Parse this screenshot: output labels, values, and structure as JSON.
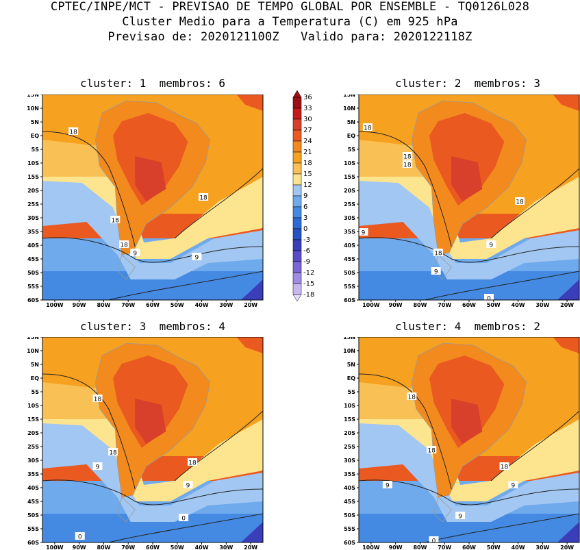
{
  "header": {
    "line1": "CPTEC/INPE/MCT - PREVISAO DE TEMPO GLOBAL POR ENSEMBLE - TQ0126L028",
    "line2": "Cluster Medio para a Temperatura (C) em 925 hPa",
    "line3": "Previsao de: 2020121100Z   Valido para: 2020122118Z"
  },
  "panels": [
    {
      "title": "cluster: 1  membros: 6",
      "contour_labels": [
        "18",
        "18",
        "18",
        "18",
        "9",
        "9"
      ]
    },
    {
      "title": "cluster: 2  membros: 3",
      "contour_labels": [
        "18",
        "18",
        "18",
        "18",
        "18",
        "9",
        "9",
        "9",
        "0"
      ]
    },
    {
      "title": "cluster: 3  membros: 4",
      "contour_labels": [
        "18",
        "18",
        "18",
        "9",
        "9",
        "0",
        "0"
      ]
    },
    {
      "title": "cluster: 4  membros: 2",
      "contour_labels": [
        "18",
        "18",
        "18",
        "9",
        "9",
        "9",
        "0"
      ]
    }
  ],
  "axes": {
    "lat_ticks": [
      "15N",
      "10N",
      "5N",
      "EQ",
      "5S",
      "10S",
      "15S",
      "20S",
      "25S",
      "30S",
      "35S",
      "40S",
      "45S",
      "50S",
      "55S",
      "60S"
    ],
    "lon_ticks": [
      "100W",
      "90W",
      "80W",
      "70W",
      "60W",
      "50W",
      "40W",
      "30W",
      "20W"
    ]
  },
  "colorbar": {
    "labels": [
      "36",
      "33",
      "30",
      "27",
      "24",
      "21",
      "18",
      "15",
      "12",
      "9",
      "6",
      "3",
      "0",
      "-3",
      "-6",
      "-9",
      "-12",
      "-15",
      "-18"
    ],
    "colors": [
      "#9e0f14",
      "#c41a1a",
      "#d8402c",
      "#ea5a20",
      "#f28a1e",
      "#f7a120",
      "#f9c155",
      "#fde58f",
      "#a2c7f2",
      "#6faaec",
      "#4489e2",
      "#2b6bd8",
      "#2552c4",
      "#3a3fb9",
      "#5a4bc8",
      "#7a66d6",
      "#9f8ce4",
      "#c7b9f0"
    ]
  }
}
